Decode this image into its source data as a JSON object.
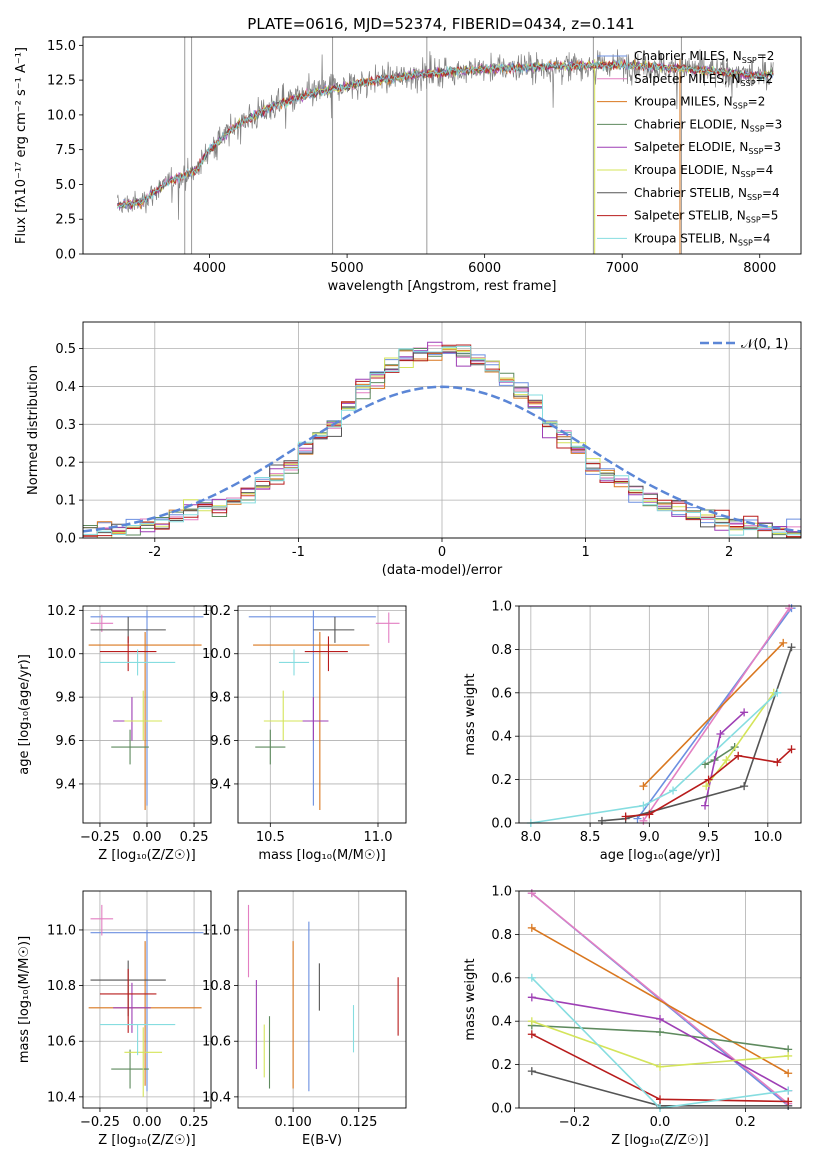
{
  "title": "PLATE=0616, MJD=52374, FIBERID=0434, z=0.141",
  "colors": {
    "miles_chabrier": "#6b8fe0",
    "miles_salpeter": "#e37fc2",
    "miles_kroupa": "#d9771f",
    "elodie_chabrier": "#5e8a5e",
    "elodie_salpeter": "#9e3fb5",
    "elodie_kroupa": "#d4e45a",
    "stelib_chabrier": "#555555",
    "stelib_salpeter": "#b81c1c",
    "stelib_kroupa": "#86dde0",
    "spectrum": "#808080"
  },
  "chart_data": [
    {
      "id": "spectrum",
      "type": "line",
      "xlabel": "wavelength [Angstrom, rest frame]",
      "ylabel": "Flux [fλ10⁻¹⁷ erg cm⁻² s⁻¹ A⁻¹]",
      "xlim": [
        3080,
        8300
      ],
      "ylim": [
        0,
        15.6
      ],
      "xticks": [
        4000,
        5000,
        6000,
        7000,
        8000
      ],
      "yticks": [
        0.0,
        2.5,
        5.0,
        7.5,
        10.0,
        12.5,
        15.0
      ],
      "ytick_labels": [
        "0.0",
        "2.5",
        "5.0",
        "7.5",
        "10.0",
        "12.5",
        "15.0"
      ],
      "grid": false,
      "legend": "top-right",
      "series": [
        {
          "name": "Chabrier MILES, NSSP=2",
          "key": "miles_chabrier"
        },
        {
          "name": "Salpeter MILES, NSSP=2",
          "key": "miles_salpeter"
        },
        {
          "name": "Kroupa MILES, NSSP=2",
          "key": "miles_kroupa"
        },
        {
          "name": "Chabrier ELODIE, NSSP=3",
          "key": "elodie_chabrier"
        },
        {
          "name": "Salpeter ELODIE, NSSP=3",
          "key": "elodie_salpeter"
        },
        {
          "name": "Kroupa ELODIE, NSSP=4",
          "key": "elodie_kroupa"
        },
        {
          "name": "Chabrier STELIB, NSSP=4",
          "key": "stelib_chabrier"
        },
        {
          "name": "Salpeter STELIB, NSSP=5",
          "key": "stelib_salpeter"
        },
        {
          "name": "Kroupa STELIB, NSSP=4",
          "key": "stelib_kroupa"
        }
      ],
      "continuum": {
        "x": [
          3330,
          3500,
          3700,
          3900,
          4000,
          4200,
          4500,
          4800,
          5100,
          5500,
          6000,
          6500,
          7000,
          7500,
          8000,
          8100
        ],
        "y": [
          3.5,
          3.7,
          5.2,
          6.0,
          7.5,
          9.3,
          10.8,
          11.7,
          12.3,
          12.9,
          13.3,
          13.5,
          13.6,
          13.3,
          12.8,
          13.0
        ]
      }
    },
    {
      "id": "residuals",
      "type": "line",
      "xlabel": "(data-model)/error",
      "ylabel": "Normed distribution",
      "xlim": [
        -2.5,
        2.5
      ],
      "ylim": [
        0,
        0.57
      ],
      "xticks": [
        -2,
        -1,
        0,
        1,
        2
      ],
      "yticks": [
        0.0,
        0.1,
        0.2,
        0.3,
        0.4,
        0.5
      ],
      "ytick_labels": [
        "0.0",
        "0.1",
        "0.2",
        "0.3",
        "0.4",
        "0.5"
      ],
      "grid": true,
      "legend": "top-right",
      "reference_label": "𝒩(0, 1)",
      "bin_width": 0.1
    },
    {
      "id": "age_vs_Z",
      "type": "scatter",
      "xlabel": "Z [log₁₀(Z/Z☉)]",
      "ylabel": "age  [log₁₀(age/yr)]",
      "xlim": [
        -0.34,
        0.34
      ],
      "ylim": [
        9.22,
        10.22
      ],
      "xticks": [
        -0.25,
        0.0,
        0.25
      ],
      "xtick_labels": [
        "−0.25",
        "0.00",
        "0.25"
      ],
      "yticks": [
        9.4,
        9.6,
        9.8,
        10.0,
        10.2
      ],
      "ytick_labels": [
        "9.4",
        "9.6",
        "9.8",
        "10.0",
        "10.2"
      ],
      "grid": true,
      "points": [
        {
          "key": "miles_chabrier",
          "x": 0.0,
          "y": 10.17,
          "xerr": 0.3,
          "ylo": 9.3,
          "yhi": 10.2
        },
        {
          "key": "miles_salpeter",
          "x": -0.24,
          "y": 10.14,
          "xerr": 0.06,
          "ylo": 10.1,
          "yhi": 10.18
        },
        {
          "key": "miles_kroupa",
          "x": -0.01,
          "y": 10.04,
          "xerr": 0.3,
          "ylo": 9.28,
          "yhi": 10.1
        },
        {
          "key": "elodie_chabrier",
          "x": -0.09,
          "y": 9.57,
          "xerr": 0.1,
          "ylo": 9.49,
          "yhi": 9.65
        },
        {
          "key": "elodie_salpeter",
          "x": -0.08,
          "y": 9.69,
          "xerr": 0.1,
          "ylo": 9.6,
          "yhi": 9.8
        },
        {
          "key": "elodie_kroupa",
          "x": -0.02,
          "y": 9.69,
          "xerr": 0.1,
          "ylo": 9.6,
          "yhi": 9.83
        },
        {
          "key": "stelib_chabrier",
          "x": -0.1,
          "y": 10.11,
          "xerr": 0.2,
          "ylo": 10.05,
          "yhi": 10.17
        },
        {
          "key": "stelib_salpeter",
          "x": -0.1,
          "y": 10.01,
          "xerr": 0.15,
          "ylo": 9.92,
          "yhi": 10.08
        },
        {
          "key": "stelib_kroupa",
          "x": -0.05,
          "y": 9.96,
          "xerr": 0.2,
          "ylo": 9.9,
          "yhi": 10.02
        }
      ]
    },
    {
      "id": "age_vs_mass",
      "type": "scatter",
      "xlabel": "mass [log₁₀(M/M☉)]",
      "xlim": [
        10.35,
        11.13
      ],
      "ylim": [
        9.22,
        10.22
      ],
      "xticks": [
        10.5,
        11.0
      ],
      "xtick_labels": [
        "10.5",
        "11.0"
      ],
      "yticks": [
        9.4,
        9.6,
        9.8,
        10.0,
        10.2
      ],
      "ytick_labels": [
        "9.4",
        "9.6",
        "9.8",
        "10.0",
        "10.2"
      ],
      "grid": true,
      "points": [
        {
          "key": "miles_chabrier",
          "x": 10.7,
          "y": 10.17,
          "xlo": 10.4,
          "xhi": 10.99,
          "ylo": 9.3,
          "yhi": 10.2
        },
        {
          "key": "miles_salpeter",
          "x": 11.05,
          "y": 10.14,
          "xlo": 10.99,
          "xhi": 11.1,
          "ylo": 10.05,
          "yhi": 10.19
        },
        {
          "key": "miles_kroupa",
          "x": 10.73,
          "y": 10.04,
          "xlo": 10.42,
          "xhi": 10.96,
          "ylo": 9.28,
          "yhi": 10.1
        },
        {
          "key": "elodie_chabrier",
          "x": 10.5,
          "y": 9.57,
          "xlo": 10.43,
          "xhi": 10.57,
          "ylo": 9.49,
          "yhi": 9.65
        },
        {
          "key": "elodie_salpeter",
          "x": 10.7,
          "y": 9.69,
          "xlo": 10.63,
          "xhi": 10.77,
          "ylo": 9.6,
          "yhi": 9.8
        },
        {
          "key": "elodie_kroupa",
          "x": 10.56,
          "y": 9.69,
          "xlo": 10.47,
          "xhi": 10.65,
          "ylo": 9.6,
          "yhi": 9.83
        },
        {
          "key": "stelib_chabrier",
          "x": 10.8,
          "y": 10.11,
          "xlo": 10.7,
          "xhi": 10.89,
          "ylo": 10.05,
          "yhi": 10.17
        },
        {
          "key": "stelib_salpeter",
          "x": 10.77,
          "y": 10.01,
          "xlo": 10.66,
          "xhi": 10.86,
          "ylo": 9.92,
          "yhi": 10.08
        },
        {
          "key": "stelib_kroupa",
          "x": 10.61,
          "y": 9.96,
          "xlo": 10.54,
          "xhi": 10.68,
          "ylo": 9.9,
          "yhi": 10.02
        }
      ]
    },
    {
      "id": "weight_vs_age",
      "type": "line",
      "xlabel": "age  [log₁₀(age/yr)]",
      "ylabel": "mass weight",
      "xlim": [
        7.9,
        10.28
      ],
      "ylim": [
        0,
        1
      ],
      "xticks": [
        8.0,
        8.5,
        9.0,
        9.5,
        10.0
      ],
      "xtick_labels": [
        "8.0",
        "8.5",
        "9.0",
        "9.5",
        "10.0"
      ],
      "yticks": [
        0.0,
        0.2,
        0.4,
        0.6,
        0.8,
        1.0
      ],
      "ytick_labels": [
        "0.0",
        "0.2",
        "0.4",
        "0.6",
        "0.8",
        "1.0"
      ],
      "grid": true,
      "series": [
        {
          "key": "miles_chabrier",
          "x": [
            8.9,
            10.2
          ],
          "y": [
            0.02,
            0.99
          ]
        },
        {
          "key": "miles_salpeter",
          "x": [
            8.95,
            10.18
          ],
          "y": [
            0.01,
            0.99
          ]
        },
        {
          "key": "miles_kroupa",
          "x": [
            8.95,
            10.13
          ],
          "y": [
            0.17,
            0.83
          ]
        },
        {
          "key": "elodie_chabrier",
          "x": [
            9.47,
            9.55,
            9.72
          ],
          "y": [
            0.27,
            0.29,
            0.35
          ]
        },
        {
          "key": "elodie_salpeter",
          "x": [
            9.47,
            9.6,
            9.8
          ],
          "y": [
            0.08,
            0.41,
            0.51
          ]
        },
        {
          "key": "elodie_kroupa",
          "x": [
            9.48,
            9.65,
            10.05
          ],
          "y": [
            0.17,
            0.29,
            0.6
          ]
        },
        {
          "key": "stelib_chabrier",
          "x": [
            8.6,
            8.8,
            9.8,
            10.2
          ],
          "y": [
            0.01,
            0.02,
            0.17,
            0.81
          ]
        },
        {
          "key": "stelib_salpeter",
          "x": [
            8.8,
            9.0,
            9.5,
            9.75,
            10.08,
            10.2
          ],
          "y": [
            0.03,
            0.04,
            0.2,
            0.31,
            0.28,
            0.34
          ]
        },
        {
          "key": "stelib_kroupa",
          "x": [
            8.0,
            8.95,
            9.2,
            10.08
          ],
          "y": [
            0.0,
            0.08,
            0.15,
            0.6
          ]
        }
      ]
    },
    {
      "id": "mass_vs_Z",
      "type": "scatter",
      "xlabel": "Z [log₁₀(Z/Z☉)]",
      "ylabel": "mass [log₁₀(M/M☉)]",
      "xlim": [
        -0.34,
        0.34
      ],
      "ylim": [
        10.36,
        11.14
      ],
      "xticks": [
        -0.25,
        0.0,
        0.25
      ],
      "xtick_labels": [
        "−0.25",
        "0.00",
        "0.25"
      ],
      "yticks": [
        10.4,
        10.6,
        10.8,
        11.0
      ],
      "ytick_labels": [
        "10.4",
        "10.6",
        "10.8",
        "11.0"
      ],
      "grid": true,
      "points": [
        {
          "key": "miles_chabrier",
          "x": 0.0,
          "y": 10.99,
          "xerr": 0.3,
          "ylo": 10.42,
          "yhi": 11.0
        },
        {
          "key": "miles_salpeter",
          "x": -0.24,
          "y": 11.04,
          "xerr": 0.06,
          "ylo": 10.98,
          "yhi": 11.09
        },
        {
          "key": "miles_kroupa",
          "x": -0.01,
          "y": 10.72,
          "xerr": 0.3,
          "ylo": 10.44,
          "yhi": 10.96
        },
        {
          "key": "elodie_chabrier",
          "x": -0.09,
          "y": 10.5,
          "xerr": 0.1,
          "ylo": 10.43,
          "yhi": 10.57
        },
        {
          "key": "elodie_salpeter",
          "x": -0.08,
          "y": 10.72,
          "xerr": 0.1,
          "ylo": 10.63,
          "yhi": 10.81
        },
        {
          "key": "elodie_kroupa",
          "x": -0.02,
          "y": 10.56,
          "xerr": 0.1,
          "ylo": 10.4,
          "yhi": 10.65
        },
        {
          "key": "stelib_chabrier",
          "x": -0.1,
          "y": 10.82,
          "xerr": 0.2,
          "ylo": 10.69,
          "yhi": 10.89
        },
        {
          "key": "stelib_salpeter",
          "x": -0.1,
          "y": 10.77,
          "xerr": 0.15,
          "ylo": 10.63,
          "yhi": 10.86
        },
        {
          "key": "stelib_kroupa",
          "x": -0.05,
          "y": 10.66,
          "xerr": 0.2,
          "ylo": 10.55,
          "yhi": 10.66
        }
      ]
    },
    {
      "id": "mass_vs_ebv",
      "type": "scatter",
      "xlabel": "E(B-V)",
      "xlim": [
        0.079,
        0.143
      ],
      "ylim": [
        10.36,
        11.14
      ],
      "xticks": [
        0.1,
        0.125
      ],
      "xtick_labels": [
        "0.100",
        "0.125"
      ],
      "yticks": [
        10.4,
        10.6,
        10.8,
        11.0
      ],
      "ytick_labels": [
        "10.4",
        "10.6",
        "10.8",
        "11.0"
      ],
      "grid": true,
      "points": [
        {
          "key": "miles_chabrier",
          "x": 0.106,
          "ylo": 10.42,
          "yhi": 11.03
        },
        {
          "key": "miles_salpeter",
          "x": 0.083,
          "ylo": 10.83,
          "yhi": 11.09
        },
        {
          "key": "miles_kroupa",
          "x": 0.1,
          "ylo": 10.43,
          "yhi": 10.96
        },
        {
          "key": "elodie_chabrier",
          "x": 0.091,
          "ylo": 10.43,
          "yhi": 10.69
        },
        {
          "key": "elodie_salpeter",
          "x": 0.086,
          "ylo": 10.5,
          "yhi": 10.82
        },
        {
          "key": "elodie_kroupa",
          "x": 0.089,
          "ylo": 10.47,
          "yhi": 10.66
        },
        {
          "key": "stelib_chabrier",
          "x": 0.11,
          "ylo": 10.71,
          "yhi": 10.88
        },
        {
          "key": "stelib_salpeter",
          "x": 0.14,
          "ylo": 10.62,
          "yhi": 10.83
        },
        {
          "key": "stelib_kroupa",
          "x": 0.123,
          "ylo": 10.56,
          "yhi": 10.73
        }
      ]
    },
    {
      "id": "weight_vs_Z",
      "type": "line",
      "xlabel": "Z [log₁₀(Z/Z☉)]",
      "ylabel": "mass weight",
      "xlim": [
        -0.33,
        0.33
      ],
      "ylim": [
        0,
        1
      ],
      "xticks": [
        -0.2,
        0.0,
        0.2
      ],
      "xtick_labels": [
        "−0.2",
        "0.0",
        "0.2"
      ],
      "yticks": [
        0.0,
        0.2,
        0.4,
        0.6,
        0.8,
        1.0
      ],
      "ytick_labels": [
        "0.0",
        "0.2",
        "0.4",
        "0.6",
        "0.8",
        "1.0"
      ],
      "grid": true,
      "series": [
        {
          "key": "miles_chabrier",
          "x": [
            -0.3,
            0.3
          ],
          "y": [
            0.99,
            0.01
          ]
        },
        {
          "key": "miles_salpeter",
          "x": [
            -0.3,
            0.3
          ],
          "y": [
            0.99,
            0.02
          ]
        },
        {
          "key": "miles_kroupa",
          "x": [
            -0.3,
            0.3
          ],
          "y": [
            0.83,
            0.16
          ]
        },
        {
          "key": "elodie_chabrier",
          "x": [
            -0.3,
            0.0,
            0.3
          ],
          "y": [
            0.38,
            0.35,
            0.27
          ]
        },
        {
          "key": "elodie_salpeter",
          "x": [
            -0.3,
            0.0,
            0.3
          ],
          "y": [
            0.51,
            0.41,
            0.08
          ]
        },
        {
          "key": "elodie_kroupa",
          "x": [
            -0.3,
            0.0,
            0.3
          ],
          "y": [
            0.4,
            0.19,
            0.24
          ]
        },
        {
          "key": "stelib_chabrier",
          "x": [
            -0.3,
            0.0,
            0.3
          ],
          "y": [
            0.17,
            0.01,
            0.01
          ]
        },
        {
          "key": "stelib_salpeter",
          "x": [
            -0.3,
            0.0,
            0.3
          ],
          "y": [
            0.34,
            0.04,
            0.03
          ]
        },
        {
          "key": "stelib_kroupa",
          "x": [
            -0.3,
            0.0,
            0.3
          ],
          "y": [
            0.6,
            0.0,
            0.08
          ]
        }
      ]
    }
  ]
}
